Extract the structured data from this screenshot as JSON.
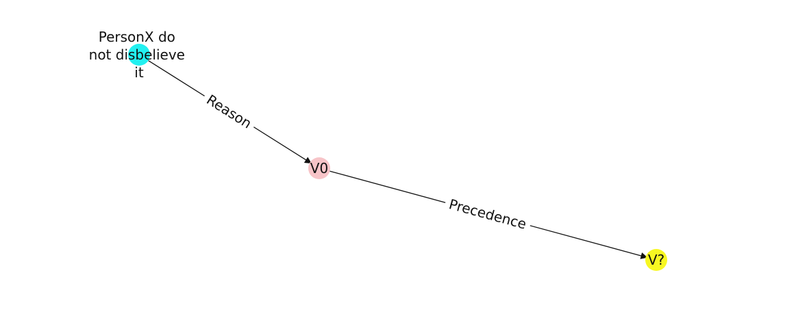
{
  "graph": {
    "nodes": [
      {
        "id": "n0",
        "label_lines": [
          "PersonX do",
          "not disbelieve",
          "it"
        ],
        "color": "#22f0f0"
      },
      {
        "id": "n1",
        "label_lines": [
          "V0"
        ],
        "color": "#f7c4c8"
      },
      {
        "id": "n2",
        "label_lines": [
          "V?"
        ],
        "color": "#f7f722"
      }
    ],
    "edges": [
      {
        "from": "n0",
        "to": "n1",
        "label": "Reason"
      },
      {
        "from": "n1",
        "to": "n2",
        "label": "Precedence"
      }
    ]
  }
}
